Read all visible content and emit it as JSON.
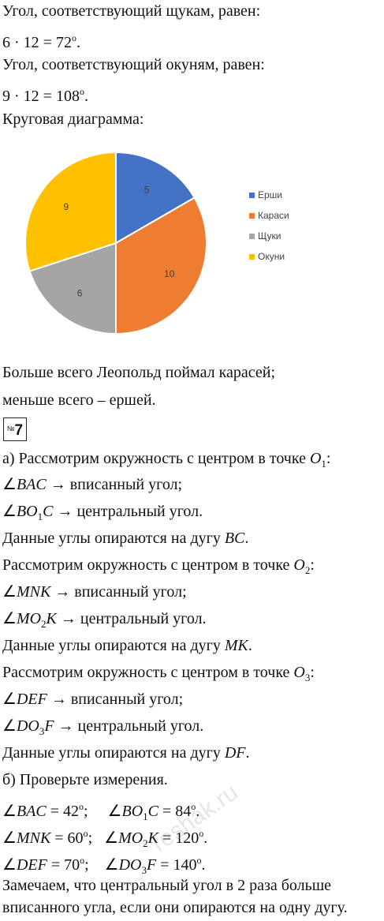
{
  "lines": {
    "pike_angle_text": "Угол, соответствующий щукам, равен:",
    "pike_formula": "6 · 12 = 72",
    "perch_angle_text": "Угол, соответствующий окуням, равен:",
    "perch_formula": "9 · 12 = 108",
    "pie_title": "Круговая диаграмма:",
    "most_caught": "Больше всего Леопольд поймал карасей;",
    "least_caught": "меньше всего – ершей.",
    "task_number": "7",
    "a_consider_o1": "а) Рассмотрим окружность с центром в точке",
    "inscribed": "→ вписанный угол;",
    "central": "→ центральный угол.",
    "rests_on_arc": "Данные углы опираются на дугу",
    "consider_o": "Рассмотрим окружность с центром в точке",
    "b_check": "б) Проверьте измерения.",
    "conclusion_1": "Замечаем, что центральный угол в 2 раза больше",
    "conclusion_2": "вписанного угла, если они опираются на одну дугу."
  },
  "chart_data": {
    "type": "pie",
    "categories": [
      "Ерши",
      "Караси",
      "Щуки",
      "Окуни"
    ],
    "values": [
      5,
      10,
      6,
      9
    ],
    "colors": [
      "#4472c4",
      "#ed7d31",
      "#a5a5a5",
      "#ffc000"
    ],
    "legend_position": "right"
  },
  "watermark": "reshak.ru"
}
